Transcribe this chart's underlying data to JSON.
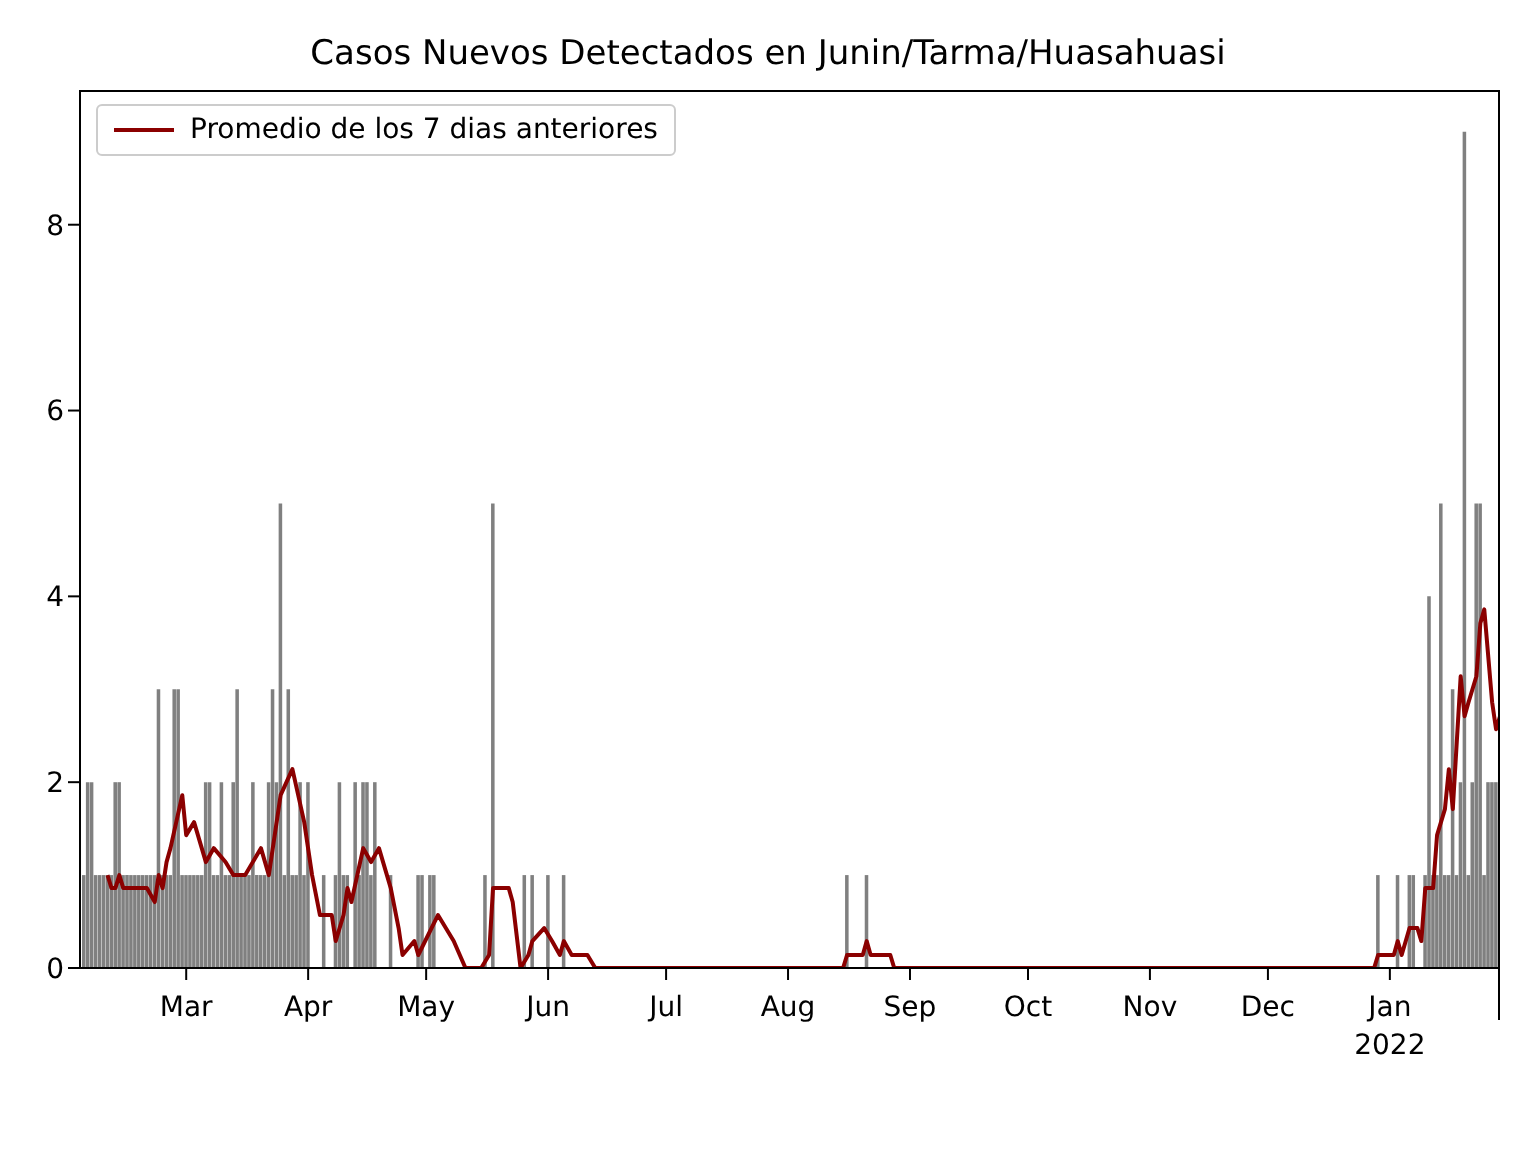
{
  "chart_data": {
    "type": "bar",
    "title": "Casos Nuevos Detectados en Junin/Tarma/Huasahuasi",
    "xlim": [
      "2021-02-02",
      "2022-01-29"
    ],
    "ylim": [
      0,
      9.45
    ],
    "yticks": [
      0,
      2,
      4,
      6,
      8
    ],
    "xticks": [
      {
        "value": "2021-03-01",
        "label": "Mar"
      },
      {
        "value": "2021-04-01",
        "label": "Apr"
      },
      {
        "value": "2021-05-01",
        "label": "May"
      },
      {
        "value": "2021-06-01",
        "label": "Jun"
      },
      {
        "value": "2021-07-01",
        "label": "Jul"
      },
      {
        "value": "2021-08-01",
        "label": "Aug"
      },
      {
        "value": "2021-09-01",
        "label": "Sep"
      },
      {
        "value": "2021-10-01",
        "label": "Oct"
      },
      {
        "value": "2021-11-01",
        "label": "Nov"
      },
      {
        "value": "2021-12-01",
        "label": "Dec"
      },
      {
        "value": "2022-01-01",
        "label": "Jan\n2022"
      }
    ],
    "grid": false,
    "legend": "top left",
    "series": [
      {
        "type": "bar",
        "color": "#808080",
        "x": [
          "2021-02-03",
          "2021-02-04",
          "2021-02-05",
          "2021-02-06",
          "2021-02-07",
          "2021-02-08",
          "2021-02-09",
          "2021-02-10",
          "2021-02-11",
          "2021-02-12",
          "2021-02-13",
          "2021-02-14",
          "2021-02-15",
          "2021-02-16",
          "2021-02-17",
          "2021-02-18",
          "2021-02-19",
          "2021-02-20",
          "2021-02-21",
          "2021-02-22",
          "2021-02-23",
          "2021-02-24",
          "2021-02-25",
          "2021-02-26",
          "2021-02-27",
          "2021-02-28",
          "2021-03-01",
          "2021-03-02",
          "2021-03-03",
          "2021-03-04",
          "2021-03-05",
          "2021-03-06",
          "2021-03-07",
          "2021-03-08",
          "2021-03-09",
          "2021-03-10",
          "2021-03-11",
          "2021-03-12",
          "2021-03-13",
          "2021-03-14",
          "2021-03-15",
          "2021-03-16",
          "2021-03-17",
          "2021-03-18",
          "2021-03-19",
          "2021-03-20",
          "2021-03-21",
          "2021-03-22",
          "2021-03-23",
          "2021-03-24",
          "2021-03-25",
          "2021-03-26",
          "2021-03-27",
          "2021-03-28",
          "2021-03-29",
          "2021-03-30",
          "2021-03-31",
          "2021-04-01",
          "2021-04-05",
          "2021-04-08",
          "2021-04-09",
          "2021-04-10",
          "2021-04-11",
          "2021-04-13",
          "2021-04-14",
          "2021-04-15",
          "2021-04-16",
          "2021-04-17",
          "2021-04-18",
          "2021-04-22",
          "2021-04-29",
          "2021-04-30",
          "2021-05-02",
          "2021-05-03",
          "2021-05-16",
          "2021-05-18",
          "2021-05-26",
          "2021-05-28",
          "2021-06-01",
          "2021-06-05",
          "2021-08-16",
          "2021-08-21",
          "2021-12-29",
          "2022-01-03",
          "2022-01-06",
          "2022-01-07",
          "2022-01-10",
          "2022-01-11",
          "2022-01-12",
          "2022-01-13",
          "2022-01-14",
          "2022-01-15",
          "2022-01-16",
          "2022-01-17",
          "2022-01-18",
          "2022-01-19",
          "2022-01-20",
          "2022-01-21",
          "2022-01-22",
          "2022-01-23",
          "2022-01-24",
          "2022-01-25",
          "2022-01-26",
          "2022-01-27",
          "2022-01-28"
        ],
        "values": [
          1,
          2,
          2,
          1,
          1,
          1,
          1,
          1,
          2,
          2,
          1,
          1,
          1,
          1,
          1,
          1,
          1,
          1,
          1,
          3,
          1,
          1,
          1,
          3,
          3,
          1,
          1,
          1,
          1,
          1,
          1,
          2,
          2,
          1,
          1,
          2,
          1,
          1,
          2,
          3,
          1,
          1,
          1,
          2,
          1,
          1,
          1,
          2,
          3,
          2,
          5,
          1,
          3,
          1,
          1,
          2,
          1,
          2,
          1,
          1,
          2,
          1,
          1,
          2,
          1,
          2,
          2,
          1,
          2,
          1,
          1,
          1,
          1,
          1,
          1,
          5,
          1,
          1,
          1,
          1,
          1,
          1,
          1,
          1,
          1,
          1,
          1,
          4,
          1,
          1,
          5,
          1,
          1,
          3,
          1,
          2,
          9,
          1,
          2,
          5,
          5,
          1,
          2,
          2,
          2
        ]
      },
      {
        "type": "line",
        "name": "Promedio de los 7 dias anteriores",
        "color": "#8b0000",
        "marker": "none",
        "line_style": "solid",
        "x": [
          "2021-02-09",
          "2021-02-10",
          "2021-02-11",
          "2021-02-12",
          "2021-02-13",
          "2021-02-16",
          "2021-02-17",
          "2021-02-18",
          "2021-02-19",
          "2021-02-21",
          "2021-02-22",
          "2021-02-23",
          "2021-02-24",
          "2021-02-25",
          "2021-02-28",
          "2021-03-01",
          "2021-03-03",
          "2021-03-06",
          "2021-03-08",
          "2021-03-11",
          "2021-03-13",
          "2021-03-16",
          "2021-03-20",
          "2021-03-22",
          "2021-03-25",
          "2021-03-28",
          "2021-03-31",
          "2021-04-02",
          "2021-04-04",
          "2021-04-07",
          "2021-04-08",
          "2021-04-10",
          "2021-04-11",
          "2021-04-12",
          "2021-04-15",
          "2021-04-17",
          "2021-04-19",
          "2021-04-22",
          "2021-04-24",
          "2021-04-25",
          "2021-04-28",
          "2021-04-29",
          "2021-05-04",
          "2021-05-08",
          "2021-05-11",
          "2021-05-15",
          "2021-05-17",
          "2021-05-18",
          "2021-05-22",
          "2021-05-23",
          "2021-05-25",
          "2021-05-27",
          "2021-05-28",
          "2021-05-31",
          "2021-06-02",
          "2021-06-04",
          "2021-06-05",
          "2021-06-07",
          "2021-06-11",
          "2021-06-13",
          "2021-08-15",
          "2021-08-16",
          "2021-08-20",
          "2021-08-21",
          "2021-08-22",
          "2021-08-27",
          "2021-08-28",
          "2021-12-28",
          "2021-12-29",
          "2022-01-02",
          "2022-01-03",
          "2022-01-04",
          "2022-01-06",
          "2022-01-08",
          "2022-01-09",
          "2022-01-10",
          "2022-01-12",
          "2022-01-13",
          "2022-01-15",
          "2022-01-16",
          "2022-01-17",
          "2022-01-19",
          "2022-01-20",
          "2022-01-21",
          "2022-01-23",
          "2022-01-24",
          "2022-01-25",
          "2022-01-27",
          "2022-01-28",
          "2022-01-29"
        ],
        "values": [
          1.0,
          0.86,
          0.86,
          1.0,
          0.86,
          0.86,
          0.86,
          0.86,
          0.86,
          0.71,
          1.0,
          0.86,
          1.14,
          1.29,
          1.86,
          1.43,
          1.57,
          1.14,
          1.29,
          1.14,
          1.0,
          1.0,
          1.29,
          1.0,
          1.86,
          2.14,
          1.57,
          1.0,
          0.57,
          0.57,
          0.29,
          0.57,
          0.86,
          0.71,
          1.29,
          1.14,
          1.29,
          0.86,
          0.43,
          0.14,
          0.29,
          0.14,
          0.57,
          0.29,
          0,
          0,
          0.14,
          0.86,
          0.86,
          0.71,
          0,
          0.14,
          0.29,
          0.43,
          0.29,
          0.14,
          0.29,
          0.14,
          0.14,
          0,
          0,
          0.14,
          0.14,
          0.29,
          0.14,
          0.14,
          0,
          0,
          0.14,
          0.14,
          0.29,
          0.14,
          0.43,
          0.43,
          0.29,
          0.86,
          0.86,
          1.43,
          1.71,
          2.14,
          1.71,
          3.14,
          2.71,
          2.86,
          3.14,
          3.71,
          3.86,
          2.86,
          2.57,
          2.71
        ]
      }
    ]
  }
}
